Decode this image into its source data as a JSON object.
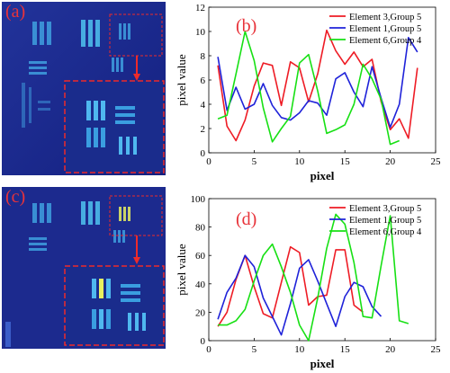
{
  "panels": {
    "a": {
      "label": "(a)"
    },
    "b": {
      "label": "(b)"
    },
    "c": {
      "label": "(c)"
    },
    "d": {
      "label": "(d)"
    }
  },
  "colors": {
    "red": "#ee1c25",
    "blue": "#1f22d9",
    "green": "#17e014",
    "image_bg": "#1b2a8a",
    "annotation": "#ee2a2a"
  },
  "chart_data": [
    {
      "panel": "b",
      "type": "line",
      "xlabel": "pixel",
      "ylabel": "pixel value",
      "xlim": [
        0,
        25
      ],
      "ylim": [
        0,
        12
      ],
      "xticks": [
        0,
        5,
        10,
        15,
        20,
        25
      ],
      "yticks": [
        0,
        2,
        4,
        6,
        8,
        10,
        12
      ],
      "legend_position": "top-right",
      "series": [
        {
          "name": "Element 3,Group 5",
          "color": "#ee1c25",
          "x": [
            1,
            2,
            3,
            4,
            5,
            6,
            7,
            8,
            9,
            10,
            11,
            12,
            13,
            14,
            15,
            16,
            17,
            18,
            19,
            20,
            21,
            22,
            23
          ],
          "y": [
            7.2,
            2.2,
            1.0,
            2.7,
            5.5,
            7.4,
            7.2,
            3.9,
            7.5,
            7.0,
            4.2,
            6.5,
            10.1,
            8.4,
            7.3,
            8.3,
            7.1,
            7.7,
            4.2,
            1.9,
            2.8,
            1.2,
            7.0
          ]
        },
        {
          "name": "Element 1,Group 5",
          "color": "#1f22d9",
          "x": [
            1,
            2,
            3,
            4,
            5,
            6,
            7,
            8,
            9,
            10,
            11,
            12,
            13,
            14,
            15,
            16,
            17,
            18,
            19,
            20,
            21,
            22,
            23
          ],
          "y": [
            7.9,
            3.5,
            5.4,
            3.6,
            4.0,
            5.7,
            3.9,
            2.9,
            2.7,
            3.3,
            4.3,
            4.1,
            3.1,
            6.1,
            6.6,
            5.0,
            3.8,
            7.1,
            4.5,
            2.1,
            4.0,
            9.5,
            8.3
          ]
        },
        {
          "name": "Element 6,Group 4",
          "color": "#17e014",
          "x": [
            1,
            2,
            3,
            4,
            5,
            6,
            7,
            8,
            9,
            10,
            11,
            12,
            13,
            14,
            15,
            16,
            17,
            18,
            19,
            20,
            21
          ],
          "y": [
            2.8,
            3.1,
            6.5,
            10.0,
            7.6,
            3.7,
            0.9,
            2.0,
            3.0,
            7.4,
            8.1,
            5.1,
            1.6,
            1.9,
            2.3,
            4.0,
            7.3,
            6.1,
            4.4,
            0.7,
            1.0
          ]
        }
      ]
    },
    {
      "panel": "d",
      "type": "line",
      "xlabel": "pixel",
      "ylabel": "pixel value",
      "xlim": [
        0,
        25
      ],
      "ylim": [
        0,
        100
      ],
      "xticks": [
        0,
        5,
        10,
        15,
        20,
        25
      ],
      "yticks": [
        0,
        20,
        40,
        60,
        80,
        100
      ],
      "legend_position": "top-right",
      "series": [
        {
          "name": "Element 3,Group 5",
          "color": "#ee1c25",
          "x": [
            1,
            2,
            3,
            4,
            5,
            6,
            7,
            8,
            9,
            10,
            11,
            12,
            13,
            14,
            15,
            16,
            17
          ],
          "y": [
            10,
            20,
            43,
            60,
            38,
            19,
            16,
            41,
            66,
            62,
            25,
            31,
            32,
            64,
            64,
            25,
            20
          ]
        },
        {
          "name": "Element 1,Group 5",
          "color": "#1f22d9",
          "x": [
            1,
            2,
            3,
            4,
            5,
            6,
            7,
            8,
            9,
            10,
            11,
            12,
            13,
            14,
            15,
            16,
            17,
            18,
            19
          ],
          "y": [
            15,
            34,
            44,
            60,
            52,
            30,
            17,
            4,
            26,
            51,
            57,
            42,
            26,
            10,
            31,
            41,
            38,
            24,
            17
          ]
        },
        {
          "name": "Element 6,Group 4",
          "color": "#17e014",
          "x": [
            1,
            2,
            3,
            4,
            5,
            6,
            7,
            8,
            9,
            10,
            11,
            12,
            13,
            14,
            15,
            16,
            17,
            18,
            19,
            20,
            21,
            22
          ],
          "y": [
            11,
            11,
            14,
            22,
            42,
            60,
            68,
            52,
            34,
            11,
            0,
            30,
            65,
            89,
            82,
            55,
            17,
            16,
            53,
            88,
            14,
            12
          ]
        }
      ]
    }
  ]
}
